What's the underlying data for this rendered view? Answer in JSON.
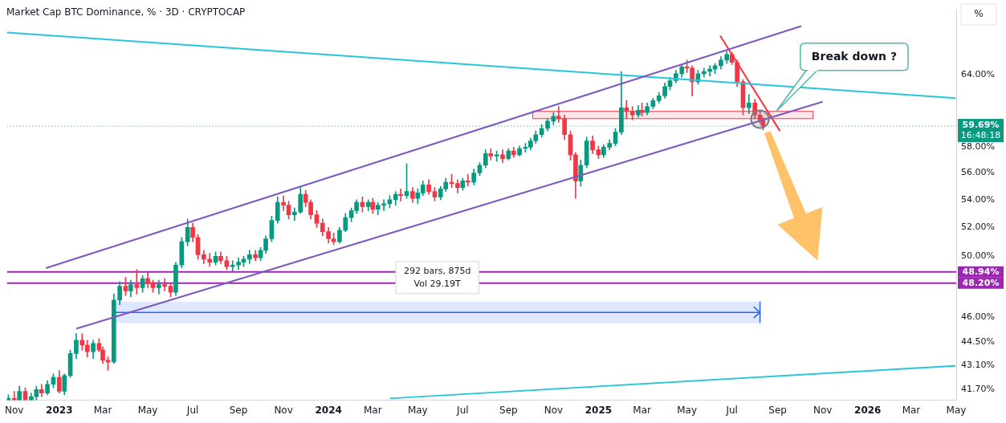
{
  "chart_data": {
    "type": "candlestick",
    "title": "Market Cap BTC Dominance, % · 3D · CRYPTOCAP",
    "unit_button": "%",
    "log": "y",
    "grid": false,
    "color": {
      "up": "#089981",
      "down": "#f23645"
    },
    "xlim": [
      "2022-10-22",
      "2026-05-01"
    ],
    "xticks": [
      {
        "value": "2022-11-01",
        "label": "Nov"
      },
      {
        "value": "2023-01-01",
        "label": "2023"
      },
      {
        "value": "2023-03-01",
        "label": "Mar"
      },
      {
        "value": "2023-05-01",
        "label": "May"
      },
      {
        "value": "2023-07-01",
        "label": "Jul"
      },
      {
        "value": "2023-09-01",
        "label": "Sep"
      },
      {
        "value": "2023-11-01",
        "label": "Nov"
      },
      {
        "value": "2024-01-01",
        "label": "2024"
      },
      {
        "value": "2024-03-01",
        "label": "Mar"
      },
      {
        "value": "2024-05-01",
        "label": "May"
      },
      {
        "value": "2024-07-01",
        "label": "Jul"
      },
      {
        "value": "2024-09-01",
        "label": "Sep"
      },
      {
        "value": "2024-11-01",
        "label": "Nov"
      },
      {
        "value": "2025-01-01",
        "label": "2025"
      },
      {
        "value": "2025-03-01",
        "label": "Mar"
      },
      {
        "value": "2025-05-01",
        "label": "May"
      },
      {
        "value": "2025-07-01",
        "label": "Jul"
      },
      {
        "value": "2025-09-01",
        "label": "Sep"
      },
      {
        "value": "2025-11-01",
        "label": "Nov"
      },
      {
        "value": "2026-01-01",
        "label": "2026"
      },
      {
        "value": "2026-03-01",
        "label": "Mar"
      },
      {
        "value": "2026-05-01",
        "label": "May"
      }
    ],
    "ylim": [
      41.1,
      69.9
    ],
    "yticks": [
      {
        "value": 41.7,
        "label": "41.70%"
      },
      {
        "value": 43.1,
        "label": "43.10%"
      },
      {
        "value": 44.5,
        "label": "44.50%"
      },
      {
        "value": 46,
        "label": "46.00%"
      },
      {
        "value": 50,
        "label": "50.00%"
      },
      {
        "value": 52,
        "label": "52.00%"
      },
      {
        "value": 54,
        "label": "54.00%"
      },
      {
        "value": 56,
        "label": "56.00%"
      },
      {
        "value": 58,
        "label": "58.00%"
      },
      {
        "value": 64,
        "label": "64.00%"
      }
    ],
    "x": [
      "2022-10-24",
      "2022-11-01",
      "2022-11-08",
      "2022-11-16",
      "2022-11-24",
      "2022-12-01",
      "2022-12-08",
      "2022-12-16",
      "2022-12-24",
      "2023-01-01",
      "2023-01-08",
      "2023-01-16",
      "2023-01-24",
      "2023-02-01",
      "2023-02-08",
      "2023-02-16",
      "2023-02-24",
      "2023-03-01",
      "2023-03-08",
      "2023-03-16",
      "2023-03-24",
      "2023-04-01",
      "2023-04-08",
      "2023-04-16",
      "2023-04-24",
      "2023-05-01",
      "2023-05-08",
      "2023-05-16",
      "2023-05-24",
      "2023-06-01",
      "2023-06-08",
      "2023-06-16",
      "2023-06-24",
      "2023-07-01",
      "2023-07-08",
      "2023-07-16",
      "2023-07-24",
      "2023-08-01",
      "2023-08-08",
      "2023-08-16",
      "2023-08-24",
      "2023-09-01",
      "2023-09-08",
      "2023-09-16",
      "2023-09-24",
      "2023-10-01",
      "2023-10-08",
      "2023-10-16",
      "2023-10-24",
      "2023-11-01",
      "2023-11-08",
      "2023-11-16",
      "2023-11-24",
      "2023-12-01",
      "2023-12-08",
      "2023-12-16",
      "2023-12-24",
      "2024-01-01",
      "2024-01-08",
      "2024-01-16",
      "2024-01-24",
      "2024-02-01",
      "2024-02-08",
      "2024-02-16",
      "2024-02-24",
      "2024-03-01",
      "2024-03-08",
      "2024-03-16",
      "2024-03-24",
      "2024-04-01",
      "2024-04-08",
      "2024-04-16",
      "2024-04-24",
      "2024-05-01",
      "2024-05-08",
      "2024-05-16",
      "2024-05-24",
      "2024-06-01",
      "2024-06-08",
      "2024-06-16",
      "2024-06-24",
      "2024-07-01",
      "2024-07-08",
      "2024-07-16",
      "2024-07-24",
      "2024-08-01",
      "2024-08-08",
      "2024-08-16",
      "2024-08-24",
      "2024-09-01",
      "2024-09-08",
      "2024-09-16",
      "2024-09-24",
      "2024-10-01",
      "2024-10-08",
      "2024-10-16",
      "2024-10-24",
      "2024-11-01",
      "2024-11-08",
      "2024-11-16",
      "2024-11-24",
      "2024-12-01",
      "2024-12-08",
      "2024-12-16",
      "2024-12-24",
      "2025-01-01",
      "2025-01-08",
      "2025-01-16",
      "2025-01-24",
      "2025-02-01",
      "2025-02-08",
      "2025-02-16",
      "2025-02-24",
      "2025-03-01",
      "2025-03-08",
      "2025-03-16",
      "2025-03-24",
      "2025-04-01",
      "2025-04-08",
      "2025-04-16",
      "2025-04-24",
      "2025-05-01",
      "2025-05-08",
      "2025-05-16",
      "2025-05-24",
      "2025-06-01",
      "2025-06-08",
      "2025-06-16",
      "2025-06-24",
      "2025-07-01",
      "2025-07-08",
      "2025-07-16",
      "2025-07-24",
      "2025-08-01",
      "2025-08-08",
      "2025-08-12"
    ],
    "values": [
      [
        40.8,
        41.4,
        40.5,
        41.2
      ],
      [
        41.2,
        41.6,
        40.6,
        40.9
      ],
      [
        40.9,
        41.9,
        40.7,
        41.6
      ],
      [
        41.6,
        41.8,
        40.9,
        41.1
      ],
      [
        41.1,
        41.5,
        40.8,
        41.3
      ],
      [
        41.3,
        41.9,
        41.0,
        41.7
      ],
      [
        41.7,
        42.0,
        41.3,
        41.5
      ],
      [
        41.5,
        42.2,
        41.4,
        42.0
      ],
      [
        42.0,
        42.6,
        41.8,
        42.4
      ],
      [
        42.4,
        42.8,
        41.5,
        41.6
      ],
      [
        41.6,
        42.6,
        41.4,
        42.5
      ],
      [
        42.5,
        44.0,
        42.4,
        43.8
      ],
      [
        43.8,
        45.0,
        43.5,
        44.6
      ],
      [
        44.6,
        45.0,
        44.0,
        44.3
      ],
      [
        44.3,
        44.6,
        43.6,
        43.9
      ],
      [
        43.9,
        44.6,
        43.5,
        44.4
      ],
      [
        44.4,
        44.7,
        43.9,
        44.0
      ],
      [
        44.0,
        44.2,
        43.2,
        43.4
      ],
      [
        43.4,
        43.6,
        42.8,
        43.3
      ],
      [
        43.3,
        47.5,
        43.2,
        47.1
      ],
      [
        47.1,
        48.3,
        46.8,
        48.0
      ],
      [
        48.0,
        48.6,
        47.4,
        47.7
      ],
      [
        47.7,
        48.4,
        47.3,
        48.1
      ],
      [
        48.1,
        49.1,
        47.5,
        47.9
      ],
      [
        47.9,
        48.7,
        47.6,
        48.5
      ],
      [
        48.5,
        48.9,
        47.9,
        48.2
      ],
      [
        48.2,
        48.4,
        47.6,
        47.9
      ],
      [
        47.9,
        48.4,
        47.5,
        48.1
      ],
      [
        48.1,
        48.5,
        47.7,
        48.0
      ],
      [
        48.0,
        48.2,
        47.3,
        47.6
      ],
      [
        47.6,
        49.6,
        47.4,
        49.4
      ],
      [
        49.4,
        51.3,
        49.2,
        51.0
      ],
      [
        51.0,
        52.6,
        50.7,
        52.0
      ],
      [
        52.0,
        52.3,
        51.0,
        51.3
      ],
      [
        51.3,
        51.5,
        49.8,
        50.1
      ],
      [
        50.1,
        50.4,
        49.5,
        49.8
      ],
      [
        49.8,
        50.2,
        49.3,
        49.6
      ],
      [
        49.6,
        50.3,
        49.4,
        50.0
      ],
      [
        50.0,
        50.3,
        49.5,
        49.7
      ],
      [
        49.7,
        50.0,
        49.1,
        49.3
      ],
      [
        49.3,
        49.7,
        49.0,
        49.4
      ],
      [
        49.4,
        49.9,
        49.1,
        49.6
      ],
      [
        49.6,
        50.0,
        49.3,
        49.8
      ],
      [
        49.8,
        50.4,
        49.5,
        50.1
      ],
      [
        50.1,
        50.4,
        49.7,
        49.9
      ],
      [
        49.9,
        50.6,
        49.7,
        50.4
      ],
      [
        50.4,
        51.4,
        50.2,
        51.2
      ],
      [
        51.2,
        52.8,
        51.0,
        52.5
      ],
      [
        52.5,
        54.2,
        52.3,
        53.8
      ],
      [
        53.8,
        54.3,
        53.2,
        53.6
      ],
      [
        53.6,
        53.9,
        52.6,
        52.9
      ],
      [
        52.9,
        53.4,
        52.5,
        53.1
      ],
      [
        53.1,
        54.9,
        53.0,
        54.4
      ],
      [
        54.4,
        54.7,
        53.5,
        53.8
      ],
      [
        53.8,
        54.0,
        52.6,
        52.9
      ],
      [
        52.9,
        53.2,
        52.0,
        52.3
      ],
      [
        52.3,
        52.6,
        51.4,
        51.7
      ],
      [
        51.7,
        52.0,
        50.9,
        51.2
      ],
      [
        51.2,
        51.6,
        50.8,
        51.0
      ],
      [
        51.0,
        52.0,
        50.9,
        51.8
      ],
      [
        51.8,
        53.0,
        51.7,
        52.7
      ],
      [
        52.7,
        53.4,
        52.4,
        53.2
      ],
      [
        53.2,
        54.0,
        53.0,
        53.8
      ],
      [
        53.8,
        54.2,
        53.1,
        53.5
      ],
      [
        53.5,
        54.0,
        53.2,
        53.8
      ],
      [
        53.8,
        54.1,
        53.0,
        53.3
      ],
      [
        53.3,
        53.8,
        52.9,
        53.6
      ],
      [
        53.6,
        54.0,
        53.2,
        53.7
      ],
      [
        53.7,
        54.3,
        53.4,
        54.0
      ],
      [
        54.0,
        54.6,
        53.6,
        54.4
      ],
      [
        54.4,
        54.8,
        53.9,
        54.3
      ],
      [
        54.3,
        56.7,
        54.1,
        54.6
      ],
      [
        54.6,
        54.9,
        53.8,
        54.1
      ],
      [
        54.1,
        54.8,
        53.7,
        54.5
      ],
      [
        54.5,
        55.4,
        54.3,
        55.1
      ],
      [
        55.1,
        55.5,
        54.4,
        54.6
      ],
      [
        54.6,
        54.9,
        53.9,
        54.2
      ],
      [
        54.2,
        55.0,
        54.0,
        54.8
      ],
      [
        54.8,
        55.6,
        54.6,
        55.3
      ],
      [
        55.3,
        55.9,
        54.9,
        55.2
      ],
      [
        55.2,
        55.5,
        54.5,
        54.9
      ],
      [
        54.9,
        55.6,
        54.7,
        55.4
      ],
      [
        55.4,
        55.9,
        55.0,
        55.3
      ],
      [
        55.3,
        56.3,
        55.1,
        56.0
      ],
      [
        56.0,
        56.8,
        55.8,
        56.6
      ],
      [
        56.6,
        57.8,
        56.4,
        57.5
      ],
      [
        57.5,
        57.9,
        57.0,
        57.3
      ],
      [
        57.3,
        57.7,
        56.9,
        57.4
      ],
      [
        57.4,
        57.8,
        56.8,
        57.1
      ],
      [
        57.1,
        57.9,
        57.0,
        57.7
      ],
      [
        57.7,
        58.0,
        57.2,
        57.4
      ],
      [
        57.4,
        58.1,
        57.3,
        57.9
      ],
      [
        57.9,
        58.3,
        57.6,
        58.0
      ],
      [
        58.0,
        58.7,
        57.8,
        58.5
      ],
      [
        58.5,
        59.3,
        58.3,
        59.0
      ],
      [
        59.0,
        59.8,
        58.8,
        59.5
      ],
      [
        59.5,
        60.3,
        59.3,
        60.1
      ],
      [
        60.1,
        60.8,
        59.8,
        60.5
      ],
      [
        60.5,
        61.3,
        60.0,
        60.3
      ],
      [
        60.3,
        60.6,
        58.6,
        59.0
      ],
      [
        59.0,
        59.3,
        57.0,
        57.4
      ],
      [
        57.4,
        57.6,
        54.1,
        55.4
      ],
      [
        55.4,
        57.0,
        55.0,
        56.6
      ],
      [
        56.6,
        58.8,
        56.4,
        58.5
      ],
      [
        58.5,
        58.9,
        57.5,
        57.8
      ],
      [
        57.8,
        58.1,
        57.1,
        57.4
      ],
      [
        57.4,
        58.2,
        57.2,
        58.0
      ],
      [
        58.0,
        58.6,
        57.8,
        58.3
      ],
      [
        58.3,
        59.5,
        58.1,
        59.2
      ],
      [
        59.2,
        64.3,
        59.0,
        61.2
      ],
      [
        61.2,
        61.8,
        60.3,
        60.9
      ],
      [
        60.9,
        61.3,
        60.2,
        60.6
      ],
      [
        60.6,
        61.4,
        60.4,
        61.0
      ],
      [
        61.0,
        61.6,
        60.5,
        60.8
      ],
      [
        60.8,
        61.6,
        60.6,
        61.3
      ],
      [
        61.3,
        62.0,
        61.1,
        61.8
      ],
      [
        61.8,
        62.5,
        61.6,
        62.2
      ],
      [
        62.2,
        63.3,
        62.0,
        63.0
      ],
      [
        63.0,
        63.8,
        62.7,
        63.5
      ],
      [
        63.5,
        64.4,
        63.3,
        64.1
      ],
      [
        64.1,
        64.9,
        63.8,
        64.7
      ],
      [
        64.7,
        65.3,
        64.2,
        64.6
      ],
      [
        64.6,
        64.8,
        62.2,
        63.4
      ],
      [
        63.4,
        64.4,
        63.2,
        64.1
      ],
      [
        64.1,
        64.6,
        63.8,
        64.3
      ],
      [
        64.3,
        64.8,
        63.9,
        64.5
      ],
      [
        64.5,
        65.0,
        64.1,
        64.8
      ],
      [
        64.8,
        65.6,
        64.5,
        65.3
      ],
      [
        65.3,
        66.1,
        65.0,
        65.8
      ],
      [
        65.8,
        66.0,
        64.9,
        65.1
      ],
      [
        65.1,
        65.3,
        63.0,
        63.4
      ],
      [
        63.4,
        63.6,
        60.6,
        61.2
      ],
      [
        61.2,
        62.3,
        60.7,
        61.6
      ],
      [
        61.6,
        61.9,
        60.3,
        60.6
      ],
      [
        60.6,
        61.0,
        59.9,
        60.2
      ],
      [
        60.2,
        60.4,
        59.4,
        59.69
      ]
    ],
    "last_price": {
      "value": 59.69,
      "label": "59.69%",
      "countdown": "16:48:18",
      "color": "#089981"
    },
    "hlines": [
      {
        "value": 48.94,
        "label": "48.94%",
        "color": "#9c27b0"
      },
      {
        "value": 48.2,
        "label": "48.20%",
        "color": "#9c27b0"
      }
    ],
    "lines": [
      {
        "x": [
          "2022-12-14",
          "2025-10-03"
        ],
        "values": [
          49.2,
          68.4
        ],
        "color": "#7e57c2",
        "line_style": "solid"
      },
      {
        "x": [
          "2023-01-24",
          "2025-11-01"
        ],
        "values": [
          45.3,
          61.7
        ],
        "color": "#7e57c2",
        "line_style": "solid"
      },
      {
        "x": [
          "2022-10-22",
          "2026-04-30"
        ],
        "values": [
          67.8,
          62.0
        ],
        "color": "#26c6da",
        "line_style": "solid"
      },
      {
        "x": [
          "2024-03-24",
          "2026-04-30"
        ],
        "values": [
          41.2,
          43.07
        ],
        "color": "#26c6da",
        "line_style": "solid"
      },
      {
        "x": [
          "2025-06-15",
          "2025-09-04"
        ],
        "values": [
          67.5,
          59.3
        ],
        "color": "#f23645",
        "line_style": "solid"
      }
    ],
    "zones": [
      {
        "x": [
          "2024-10-04",
          "2025-10-19"
        ],
        "y": [
          60.3,
          60.9
        ],
        "color": "#f23645"
      }
    ],
    "measure": {
      "x": [
        "2023-03-17",
        "2025-08-08"
      ],
      "y": [
        45.65,
        47.0
      ],
      "color": "#2962ff",
      "text": [
        "292 bars, 875d",
        "Vol 29.19T"
      ]
    },
    "arrows": [
      {
        "x": [
          "2025-08-18",
          "2025-10-25"
        ],
        "values": [
          59.2,
          49.7
        ],
        "color": "#ffb74d"
      }
    ],
    "circles": [
      {
        "x": "2025-08-08",
        "value": 60.25,
        "color": "#787b86"
      }
    ],
    "annotations": [
      {
        "text": "Break down ?",
        "x": "2025-08-30",
        "value": 60.9,
        "color": "#4db6ac"
      }
    ]
  }
}
